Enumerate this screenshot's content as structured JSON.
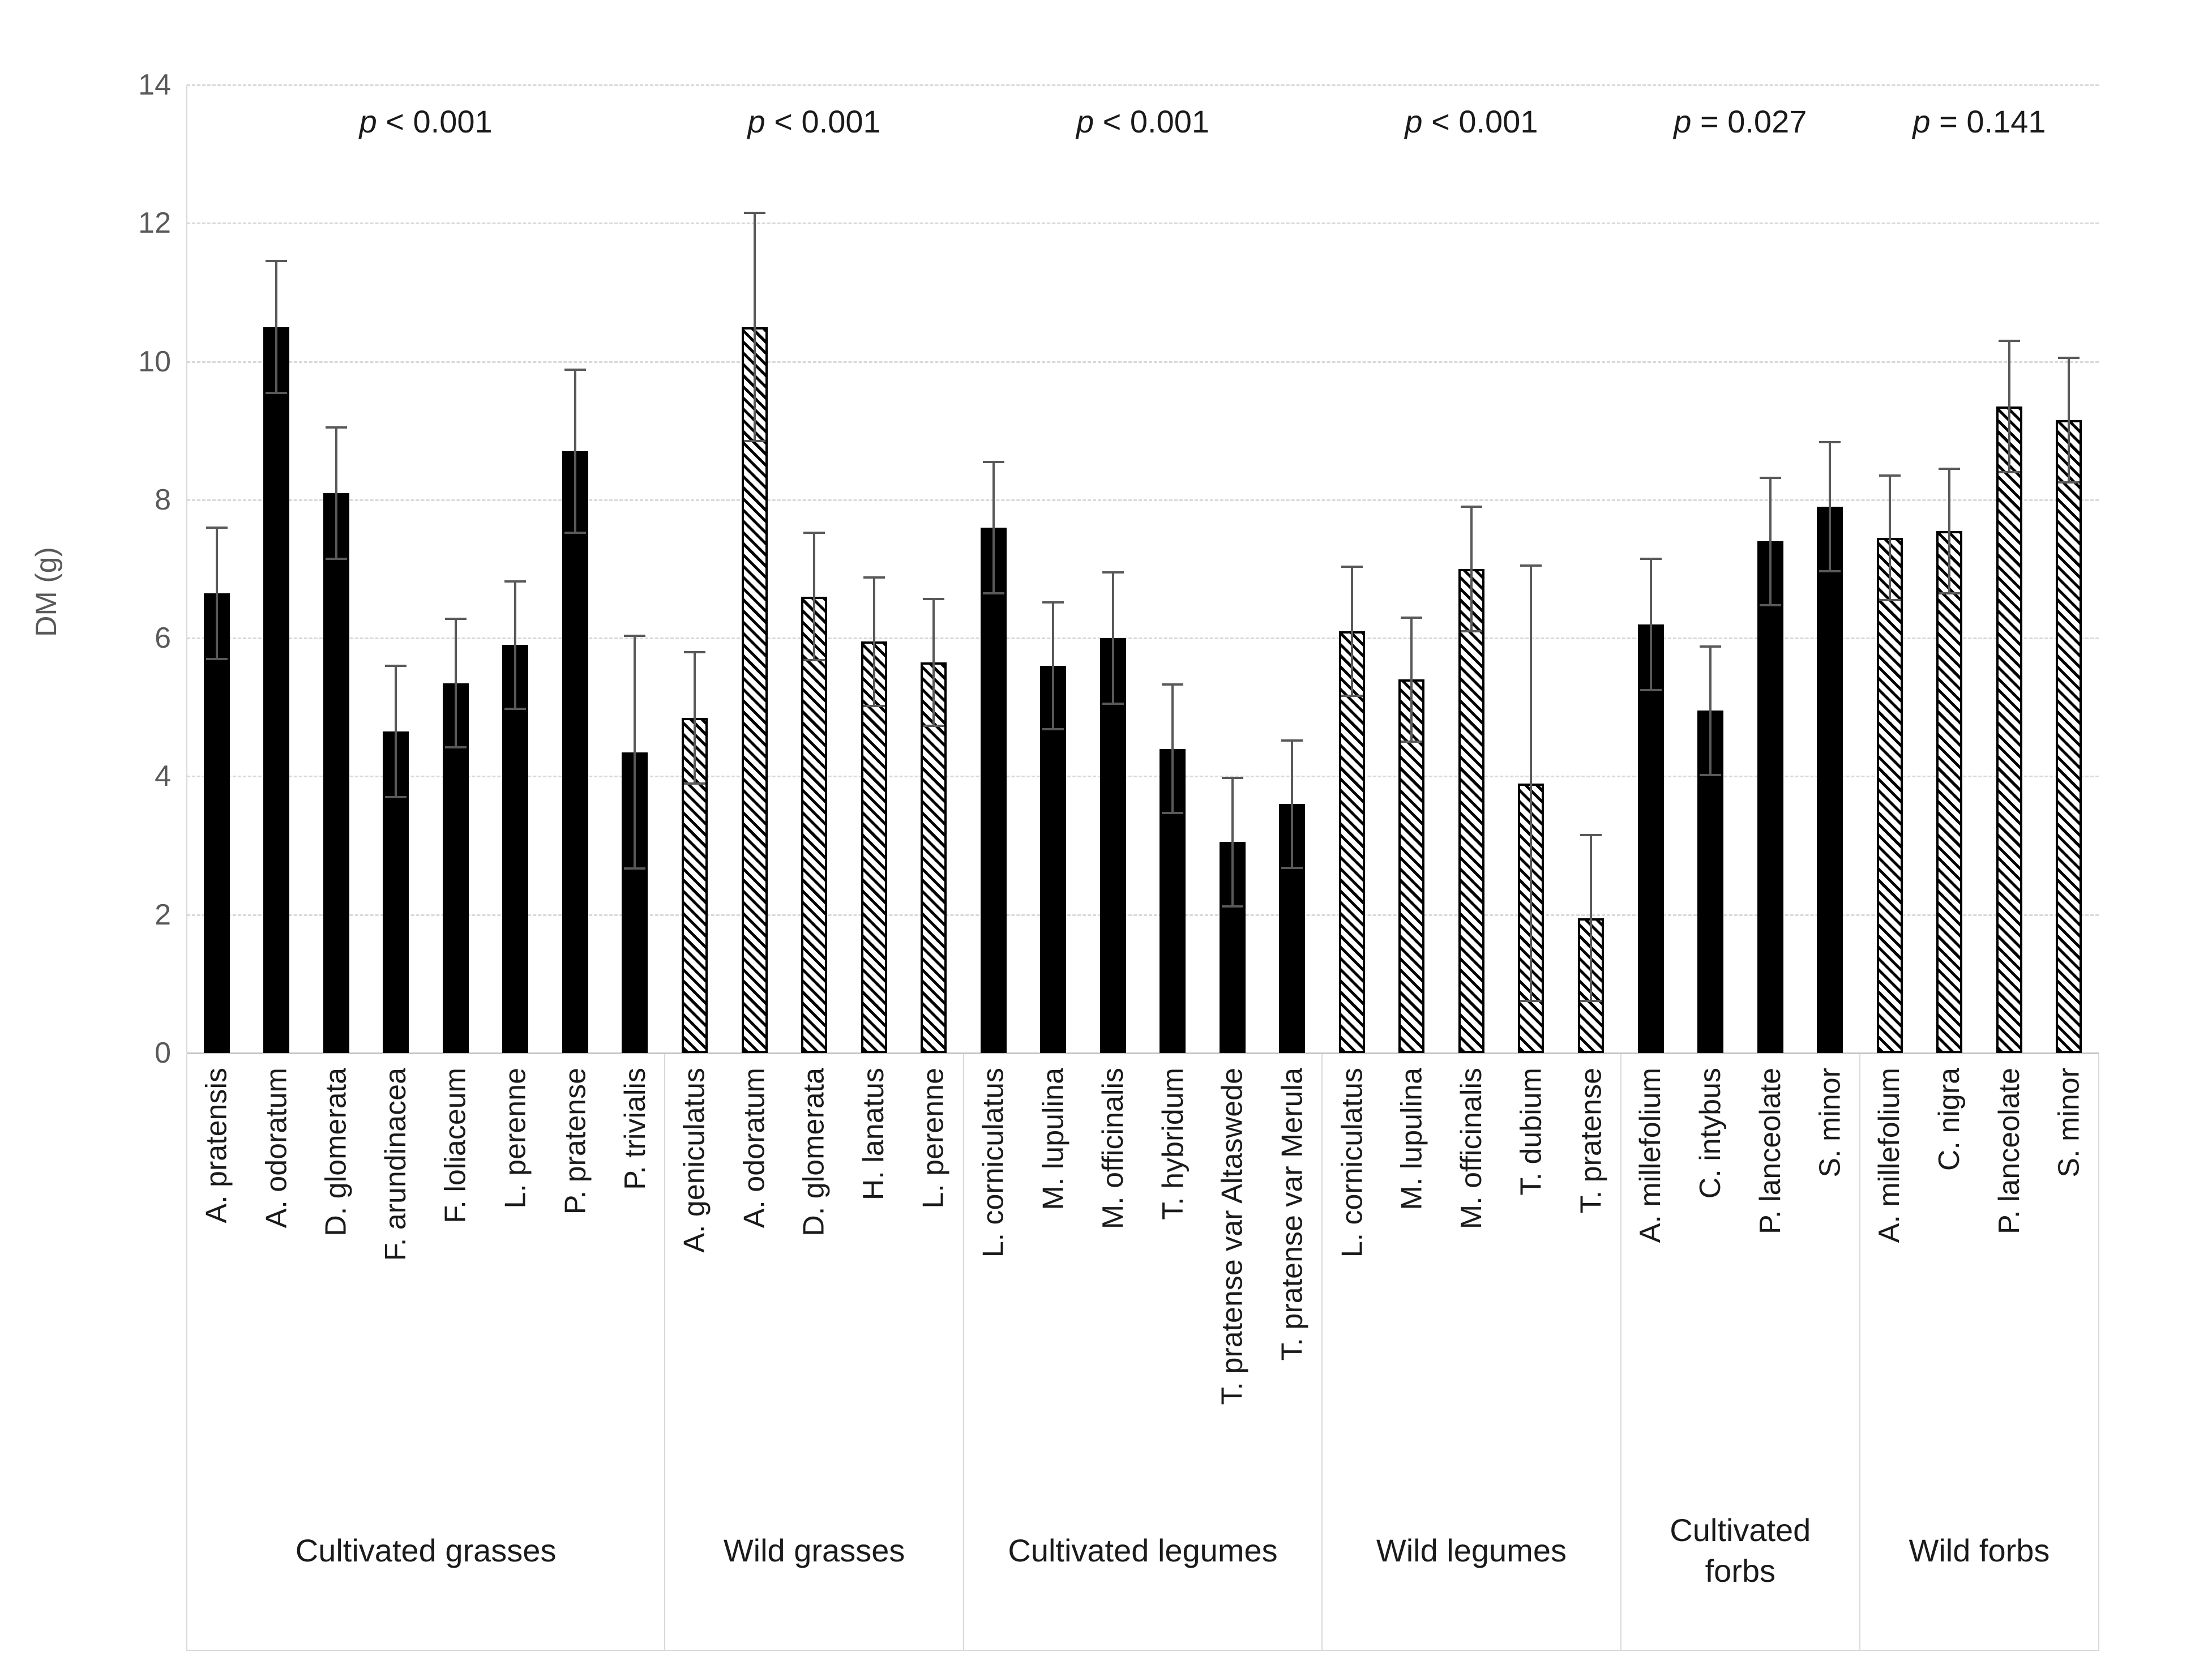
{
  "chart_data": {
    "type": "bar",
    "title": "",
    "ylabel": "DM (g)",
    "xlabel": "",
    "ylim": [
      0,
      14
    ],
    "yticks": [
      0,
      2,
      4,
      6,
      8,
      10,
      12,
      14
    ],
    "grid": "horizontal-dashed",
    "legend": "none",
    "error_bars": "plus-minus with caps",
    "colors": {
      "solid_bar_fill": "#000000",
      "hatched_bar_fill": "#ffffff",
      "hatch_stroke": "#000000",
      "error_bar": "#595959",
      "gridline": "#d9d9d9",
      "axis_text": "#595959",
      "label_text": "#1a1a1a"
    },
    "groups": [
      {
        "label": "Cultivated grasses",
        "p_label": "p < 0.001",
        "pattern": "solid",
        "bars": [
          {
            "label": "A. pratensis",
            "value": 6.65,
            "error": 0.95
          },
          {
            "label": "A. odoratum",
            "value": 10.5,
            "error": 0.95
          },
          {
            "label": "D. glomerata",
            "value": 8.1,
            "error": 0.95
          },
          {
            "label": "F. arundinacea",
            "value": 4.65,
            "error": 0.95
          },
          {
            "label": "F. loliaceum",
            "value": 5.35,
            "error": 0.93
          },
          {
            "label": "L. perenne",
            "value": 5.9,
            "error": 0.92
          },
          {
            "label": "P. pratense",
            "value": 8.7,
            "error": 1.18
          },
          {
            "label": "P. trivialis",
            "value": 4.35,
            "error": 1.68
          }
        ]
      },
      {
        "label": "Wild grasses",
        "p_label": "p < 0.001",
        "pattern": "hatched",
        "bars": [
          {
            "label": "A. geniculatus",
            "value": 4.85,
            "error": 0.95
          },
          {
            "label": "A. odoratum",
            "value": 10.5,
            "error": 1.65
          },
          {
            "label": "D. glomerata",
            "value": 6.6,
            "error": 0.92
          },
          {
            "label": "H. lanatus",
            "value": 5.95,
            "error": 0.93
          },
          {
            "label": "L. perenne",
            "value": 5.65,
            "error": 0.92
          }
        ]
      },
      {
        "label": "Cultivated legumes",
        "p_label": "p < 0.001",
        "pattern": "solid",
        "bars": [
          {
            "label": "L. corniculatus",
            "value": 7.6,
            "error": 0.95
          },
          {
            "label": "M. lupulina",
            "value": 5.6,
            "error": 0.92
          },
          {
            "label": "M. officinalis",
            "value": 6.0,
            "error": 0.95
          },
          {
            "label": "T. hybridum",
            "value": 4.4,
            "error": 0.93
          },
          {
            "label": "T. pratense var Altaswede",
            "value": 3.05,
            "error": 0.93
          },
          {
            "label": "T. pratense var Merula",
            "value": 3.6,
            "error": 0.92
          }
        ]
      },
      {
        "label": "Wild legumes",
        "p_label": "p < 0.001",
        "pattern": "hatched",
        "bars": [
          {
            "label": "L. corniculatus",
            "value": 6.1,
            "error": 0.93
          },
          {
            "label": "M. lupulina",
            "value": 5.4,
            "error": 0.9
          },
          {
            "label": "M. officinalis",
            "value": 7.0,
            "error": 0.9
          },
          {
            "label": "T. dubium",
            "value": 3.9,
            "error": 3.15
          },
          {
            "label": "T. pratense",
            "value": 1.95,
            "error": 1.2
          }
        ]
      },
      {
        "label": "Cultivated forbs",
        "p_label": "p = 0.027",
        "pattern": "solid",
        "bars": [
          {
            "label": "A. millefolium",
            "value": 6.2,
            "error": 0.95
          },
          {
            "label": "C. intybus",
            "value": 4.95,
            "error": 0.93
          },
          {
            "label": "P. lanceolate",
            "value": 7.4,
            "error": 0.92
          },
          {
            "label": "S. minor",
            "value": 7.9,
            "error": 0.93
          }
        ]
      },
      {
        "label": "Wild forbs",
        "p_label": "p = 0.141",
        "pattern": "hatched",
        "bars": [
          {
            "label": "A. millefolium",
            "value": 7.45,
            "error": 0.9
          },
          {
            "label": "C. nigra",
            "value": 7.55,
            "error": 0.9
          },
          {
            "label": "P. lanceolate",
            "value": 9.35,
            "error": 0.95
          },
          {
            "label": "S. minor",
            "value": 9.15,
            "error": 0.9
          }
        ]
      }
    ]
  }
}
